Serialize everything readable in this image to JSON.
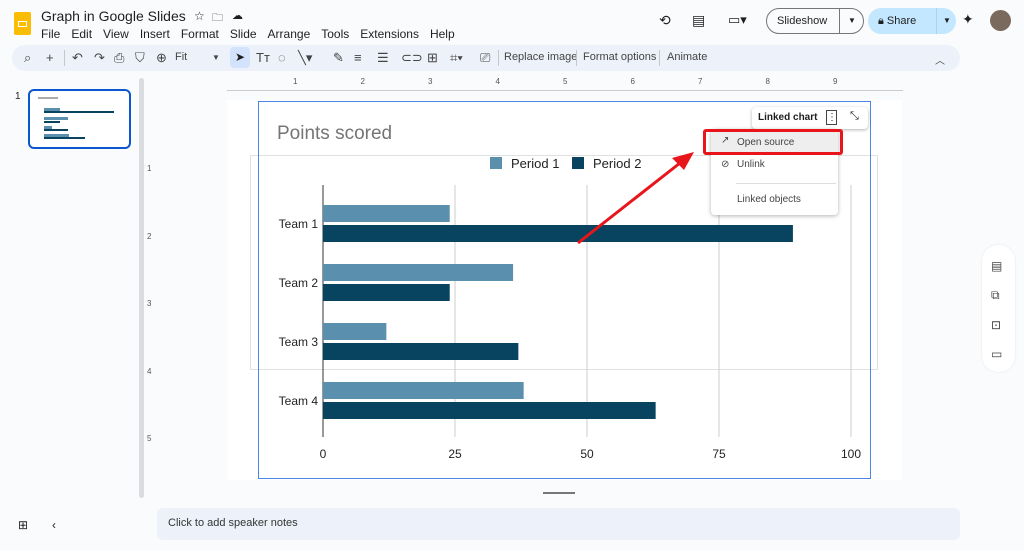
{
  "app": {
    "title": "Graph in Google Slides",
    "menu": [
      "File",
      "Edit",
      "View",
      "Insert",
      "Format",
      "Slide",
      "Arrange",
      "Tools",
      "Extensions",
      "Help"
    ],
    "slideshow_label": "Slideshow",
    "share_label": "Share"
  },
  "toolbar": {
    "zoom": "Fit",
    "replace_image": "Replace image",
    "format_options": "Format options",
    "animate": "Animate"
  },
  "ruler": {
    "h": [
      "1",
      "2",
      "3",
      "4",
      "5",
      "6",
      "7",
      "8",
      "9"
    ],
    "v": [
      "1",
      "2",
      "3",
      "4",
      "5"
    ]
  },
  "filmstrip": {
    "slide_number": "1"
  },
  "linked_chart": {
    "label": "Linked chart",
    "menu": [
      "Open source",
      "Unlink",
      "Linked objects"
    ]
  },
  "notes": {
    "placeholder": "Click to add speaker notes"
  },
  "colors": {
    "period1": "#5a8fae",
    "period2": "#08435f",
    "highlight": "#e8151b",
    "accent": "#1a73e8"
  },
  "chart_data": {
    "type": "bar",
    "orientation": "horizontal",
    "title": "Points scored",
    "categories": [
      "Team 1",
      "Team 2",
      "Team 3",
      "Team 4"
    ],
    "series": [
      {
        "name": "Period 1",
        "values": [
          24,
          36,
          12,
          38
        ]
      },
      {
        "name": "Period 2",
        "values": [
          89,
          24,
          37,
          63
        ]
      }
    ],
    "xlim": [
      0,
      100
    ],
    "xticks": [
      "0",
      "25",
      "50",
      "75",
      "100"
    ],
    "grid": true,
    "legend": "top"
  }
}
